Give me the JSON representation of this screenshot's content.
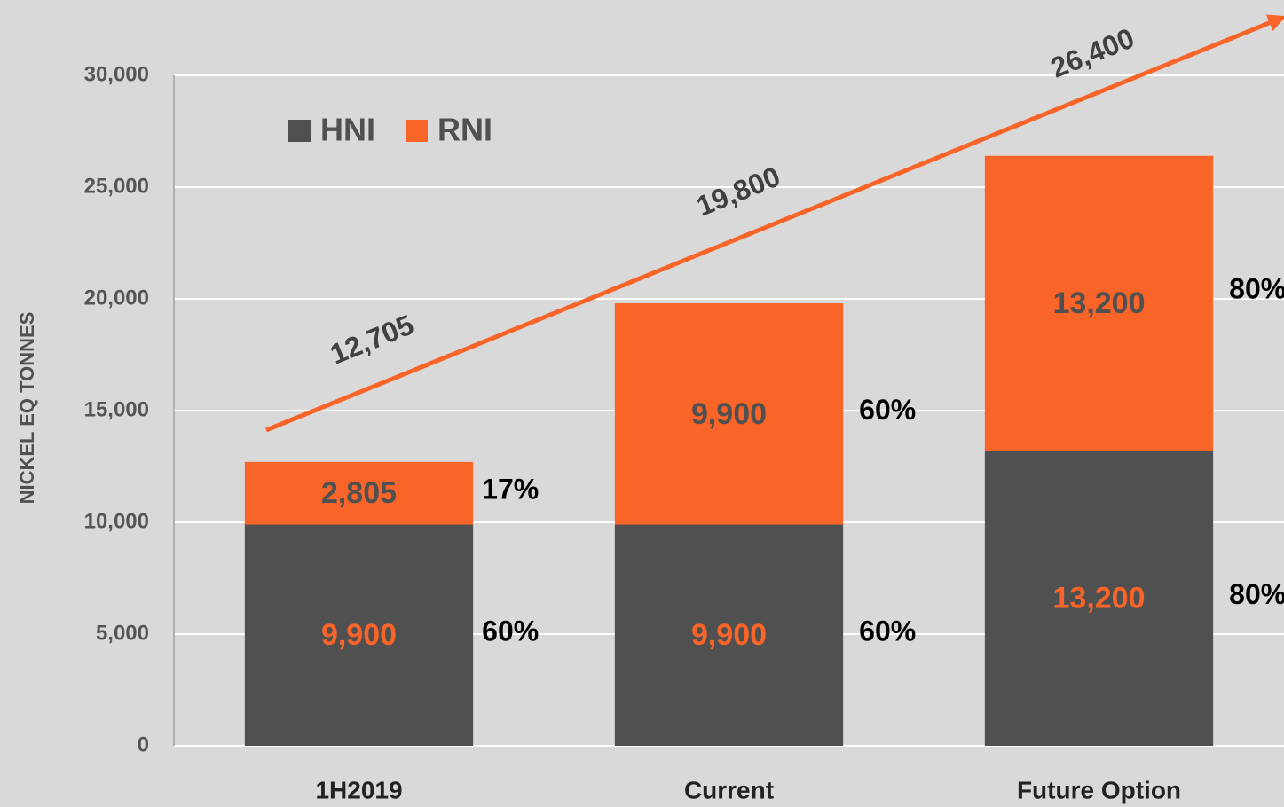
{
  "chart_data": {
    "type": "stacked_bar",
    "ylabel": "NICKEL EQ TONNES",
    "categories": [
      "1H2019",
      "Current",
      "Future Option"
    ],
    "series": [
      {
        "name": "HNI",
        "color": "#505050",
        "label_color": "#f96428",
        "values": [
          9900,
          9900,
          13200
        ],
        "value_labels": [
          "9,900",
          "9,900",
          "13,200"
        ],
        "share_labels": [
          "60%",
          "60%",
          "80%"
        ]
      },
      {
        "name": "RNI",
        "color": "#f96428",
        "label_color": "#505050",
        "values": [
          2805,
          9900,
          13200
        ],
        "value_labels": [
          "2,805",
          "9,900",
          "13,200"
        ],
        "share_labels": [
          "17%",
          "60%",
          "80%"
        ]
      }
    ],
    "annotations": [
      "12,705",
      "19,800",
      "26,400"
    ],
    "trend_color": "#f96428",
    "ylim": [
      0,
      30000
    ],
    "yticks": [
      0,
      {
        "value": 5000,
        "label": "5,000"
      },
      {
        "value": 10000,
        "label": "10,000"
      },
      {
        "value": 15000,
        "label": "15,000"
      },
      {
        "value": 20000,
        "label": "20,000"
      },
      {
        "value": 25000,
        "label": "25,000"
      },
      {
        "value": 30000,
        "label": "30,000"
      }
    ],
    "grid": true
  }
}
